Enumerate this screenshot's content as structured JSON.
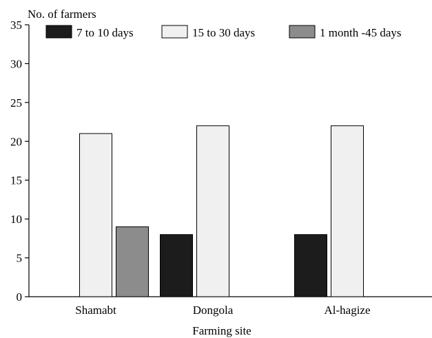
{
  "chart_data": {
    "type": "bar",
    "xlabel": "Farming site",
    "ylabel": "No. of farmers",
    "categories": [
      "Shamabt",
      "Dongola",
      "Al-hagize"
    ],
    "series": [
      {
        "name": "7 to 10 days",
        "color": "#1c1c1c",
        "values": [
          0,
          8,
          8
        ]
      },
      {
        "name": "15 to 30 days",
        "color": "#f0f0f0",
        "values": [
          21,
          22,
          22
        ]
      },
      {
        "name": "1 month -45 days",
        "color": "#8c8c8c",
        "values": [
          9,
          0,
          0
        ]
      }
    ],
    "ylim": [
      0,
      35
    ],
    "yticks": [
      0,
      5,
      10,
      15,
      20,
      25,
      30,
      35
    ],
    "grid": false,
    "legend_position": "top"
  }
}
